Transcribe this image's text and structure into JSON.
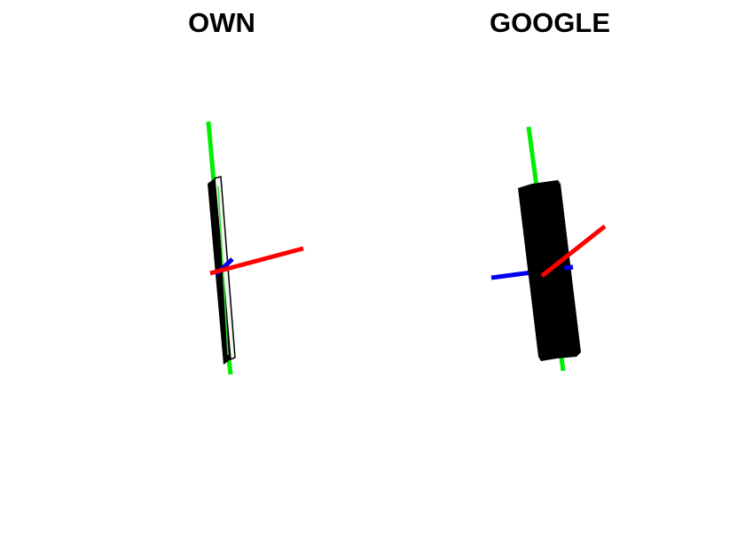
{
  "panels": [
    {
      "title": "OWN",
      "object": "thin-phone-slab",
      "axes": [
        "x-axis-red",
        "y-axis-green",
        "z-axis-blue"
      ]
    },
    {
      "title": "GOOGLE",
      "object": "thick-phone-slab",
      "axes": [
        "x-axis-red",
        "y-axis-green",
        "z-axis-blue"
      ]
    }
  ],
  "colors": {
    "background": "#ffffff",
    "x_axis": "#ff0000",
    "y_axis": "#00ee00",
    "z_axis": "#0000ee",
    "slab": "#000000",
    "slab_face": "#f4f8f0"
  }
}
